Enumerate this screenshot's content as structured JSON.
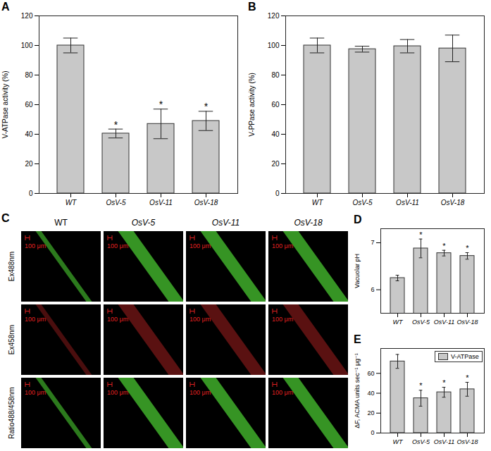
{
  "chart_data": [
    {
      "panel_label": "A",
      "type": "bar",
      "categories": [
        "WT",
        "OsV-5",
        "OsV-11",
        "OsV-18"
      ],
      "values": [
        100,
        40.5,
        47,
        49
      ],
      "errors": [
        5,
        3,
        10,
        6.5
      ],
      "significance": [
        null,
        "*",
        "*",
        "*"
      ],
      "y_label": "V-ATPase activity (%)",
      "ylim": [
        0,
        120
      ],
      "yticks": [
        0,
        20,
        40,
        60,
        80,
        100,
        120
      ],
      "color": "#c8c8c8"
    },
    {
      "panel_label": "B",
      "type": "bar",
      "categories": [
        "WT",
        "OsV-5",
        "OsV-11",
        "OsV-18"
      ],
      "values": [
        100,
        97.5,
        99.5,
        98
      ],
      "errors": [
        5,
        2,
        4.5,
        9
      ],
      "significance": [
        null,
        null,
        null,
        null
      ],
      "y_label": "V-PPase activity (%)",
      "ylim": [
        0,
        120
      ],
      "yticks": [
        0,
        20,
        40,
        60,
        80,
        100,
        120
      ],
      "color": "#c8c8c8"
    },
    {
      "panel_label": "D",
      "type": "bar",
      "categories": [
        "WT",
        "OsV-5",
        "OsV-11",
        "OsV-18"
      ],
      "values": [
        6.25,
        6.88,
        6.78,
        6.72
      ],
      "errors": [
        0.06,
        0.2,
        0.06,
        0.07
      ],
      "significance": [
        null,
        "*",
        "*",
        "*"
      ],
      "y_label": "Vacuolar pH",
      "ylim": [
        5.5,
        7.3
      ],
      "yticks": [
        6,
        7
      ],
      "color": "#c8c8c8"
    },
    {
      "panel_label": "E",
      "type": "bar",
      "categories": [
        "WT",
        "OsV-5",
        "OsV-11",
        "OsV-18"
      ],
      "series": [
        {
          "name": "V-ATPase",
          "color": "#c8c8c8",
          "values": [
            72,
            35,
            41,
            44
          ],
          "errors": [
            7,
            8,
            5,
            7
          ]
        }
      ],
      "significance": [
        null,
        "*",
        "*",
        "*"
      ],
      "legend": "top-right",
      "y_label": "ΔF, ACMA units sec⁻¹ μg⁻¹",
      "ylim": [
        0,
        85
      ],
      "yticks": [
        0,
        20,
        40,
        60
      ]
    }
  ],
  "image_panel": {
    "panel_label": "C",
    "columns": [
      "WT",
      "OsV-5",
      "OsV-11",
      "OsV-18"
    ],
    "rows": [
      "Ex488nm",
      "Ex458nm",
      "Ratio488/458nm"
    ],
    "scale_bar_label": "100 μm"
  }
}
